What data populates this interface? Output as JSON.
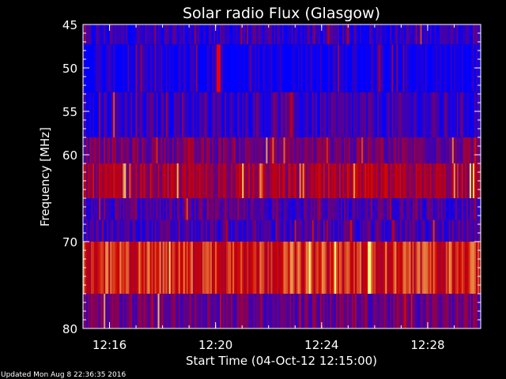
{
  "chart_data": {
    "type": "heatmap",
    "title": "Solar radio Flux (Glasgow)",
    "xlabel": "Start Time (04-Oct-12 12:15:00)",
    "ylabel": "Frequency [MHz]",
    "x_range_minutes": [
      12.25,
      12.49
    ],
    "y_range_mhz": [
      45,
      80
    ],
    "x_ticks": [
      {
        "label": "12:16",
        "value_min": 16
      },
      {
        "label": "12:20",
        "value_min": 20
      },
      {
        "label": "12:24",
        "value_min": 24
      },
      {
        "label": "12:28",
        "value_min": 28
      }
    ],
    "y_ticks": [
      {
        "label": "45",
        "value": 45
      },
      {
        "label": "50",
        "value": 50
      },
      {
        "label": "55",
        "value": 55
      },
      {
        "label": "60",
        "value": 60
      },
      {
        "label": "70",
        "value": 70
      },
      {
        "label": "80",
        "value": 80
      }
    ],
    "time_range_min": [
      15.0,
      30.0
    ],
    "bands": [
      {
        "f0": 45.0,
        "f1": 47.3,
        "level": 0.12
      },
      {
        "f0": 47.3,
        "f1": 52.8,
        "level": 0.03
      },
      {
        "f0": 52.8,
        "f1": 58.0,
        "level": 0.15
      },
      {
        "f0": 58.0,
        "f1": 61.0,
        "level": 0.32
      },
      {
        "f0": 61.0,
        "f1": 65.0,
        "level": 0.45
      },
      {
        "f0": 65.0,
        "f1": 67.5,
        "level": 0.2
      },
      {
        "f0": 67.5,
        "f1": 70.0,
        "level": 0.18
      },
      {
        "f0": 70.0,
        "f1": 76.0,
        "level": 0.65
      },
      {
        "f0": 76.0,
        "f1": 80.0,
        "level": 0.3
      }
    ],
    "features": [
      {
        "t": 20.1,
        "f0": 47.3,
        "f1": 52.8,
        "level": 0.7
      }
    ],
    "colors": {
      "low": "#0000ff",
      "mid": "#cc0000",
      "high": "#ffff80",
      "axis": "#ffffff"
    }
  },
  "footer": "Updated Mon Aug  8 22:36:35 2016"
}
